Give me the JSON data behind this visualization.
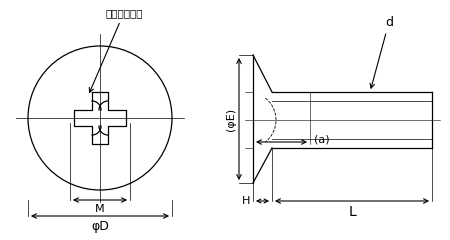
{
  "bg_color": "#ffffff",
  "line_color": "#000000",
  "fig_width": 4.5,
  "fig_height": 2.4,
  "dpi": 100,
  "label_juji": "十字穴＃０番",
  "label_phiD": "φD",
  "label_M": "M",
  "label_phiE": "(φE)",
  "label_a": "(a)",
  "label_d": "d",
  "label_H": "H",
  "label_L": "L"
}
